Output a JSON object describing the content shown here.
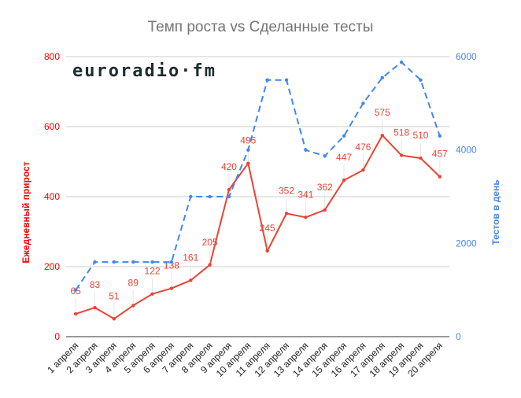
{
  "chart_data": {
    "type": "line",
    "title": "Темп роста vs Сделанные тесты",
    "watermark": "euroradio·fm",
    "categories": [
      "1 апреля",
      "2 апреля",
      "3 апреля",
      "4 апреля",
      "5 апреля",
      "6 апреля",
      "7 апреля",
      "8 апреля",
      "9 апреля",
      "10 апреля",
      "11 апреля",
      "12 апреля",
      "13 апреля",
      "14 апреля",
      "15 апреля",
      "16 апреля",
      "17 апреля",
      "18 апреля",
      "19 апреля",
      "20 апреля"
    ],
    "series": [
      {
        "name": "Ежедневный прирост",
        "axis": "left",
        "color": "#ea4335",
        "style": "solid",
        "data_labels": true,
        "values": [
          65,
          83,
          51,
          89,
          122,
          138,
          161,
          205,
          420,
          495,
          245,
          352,
          341,
          362,
          447,
          476,
          575,
          518,
          510,
          457
        ]
      },
      {
        "name": "Тестов в день",
        "axis": "right",
        "color": "#4285f4",
        "style": "dashed",
        "data_labels": false,
        "values": [
          1000,
          1600,
          1600,
          1600,
          1600,
          1600,
          3000,
          3000,
          3000,
          4000,
          5500,
          5500,
          4000,
          3870,
          4300,
          5000,
          5550,
          5880,
          5500,
          4300
        ]
      }
    ],
    "left_axis": {
      "label": "Ежедневный прирост",
      "min": 0,
      "max": 800,
      "ticks": [
        0,
        200,
        400,
        600,
        800
      ],
      "color": "#ff0000"
    },
    "right_axis": {
      "label": "Тестов в день",
      "min": 0,
      "max": 6000,
      "ticks": [
        0,
        2000,
        4000,
        6000
      ],
      "color": "#4a86e8"
    },
    "xlabel": "",
    "grid": true,
    "legend": "none"
  }
}
